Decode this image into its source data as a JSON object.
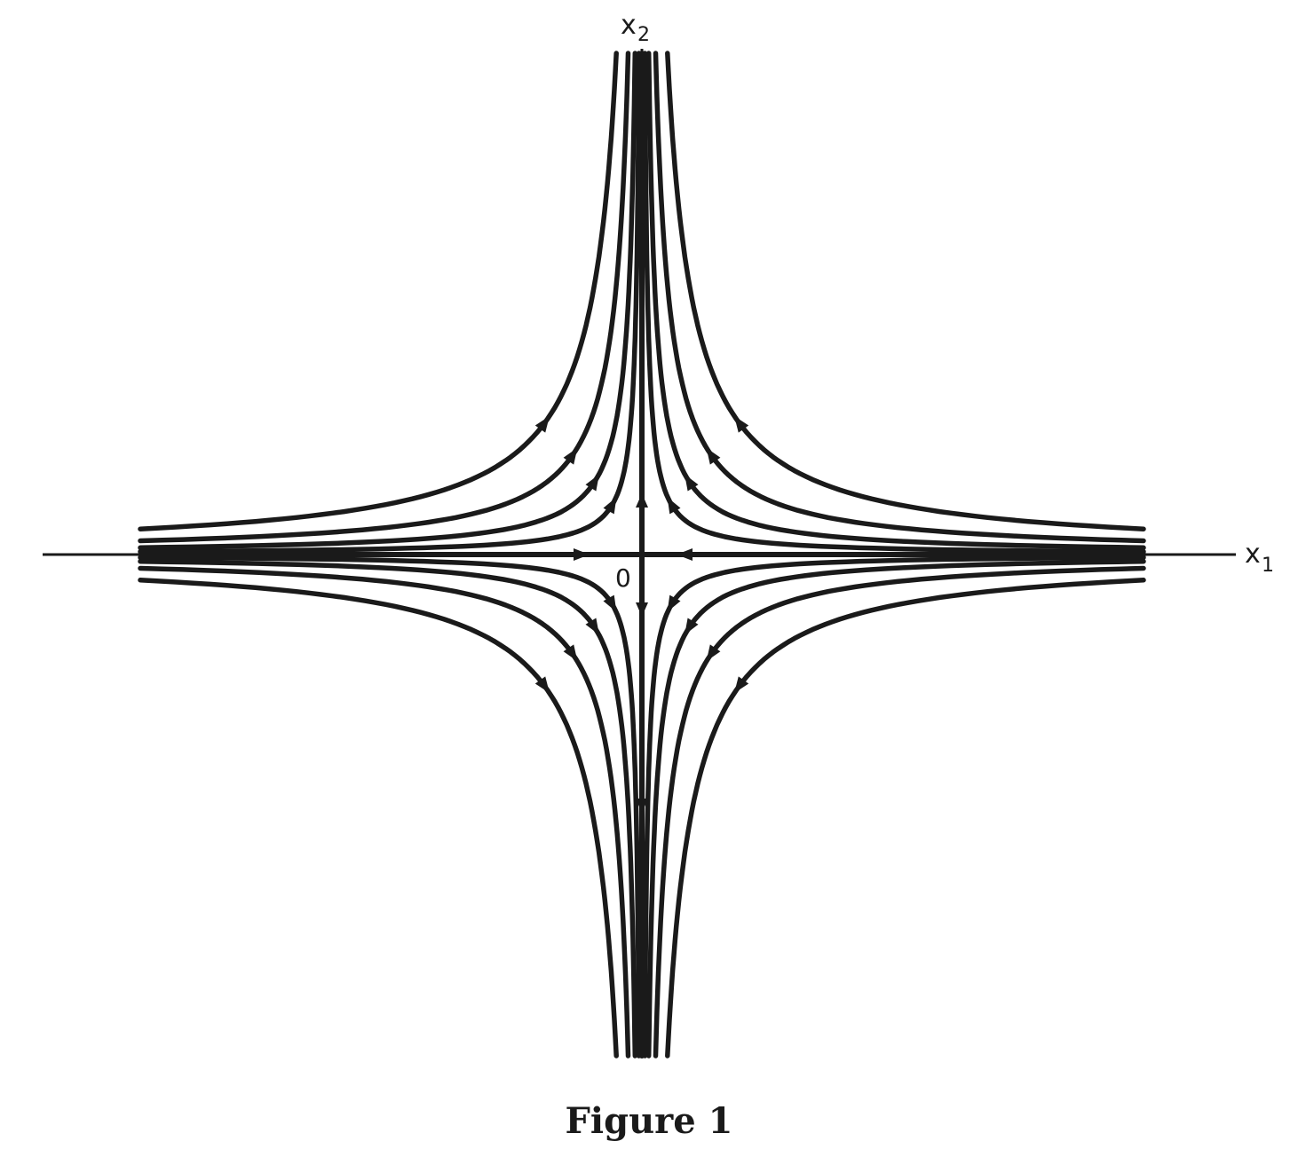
{
  "figure": {
    "caption": "Figure 1",
    "x_axis_label": {
      "base": "x",
      "sub": "1"
    },
    "y_axis_label": {
      "base": "x",
      "sub": "2"
    },
    "origin_label": "0"
  },
  "colors": {
    "ink": "#1a1a1a",
    "background": "#ffffff"
  }
}
